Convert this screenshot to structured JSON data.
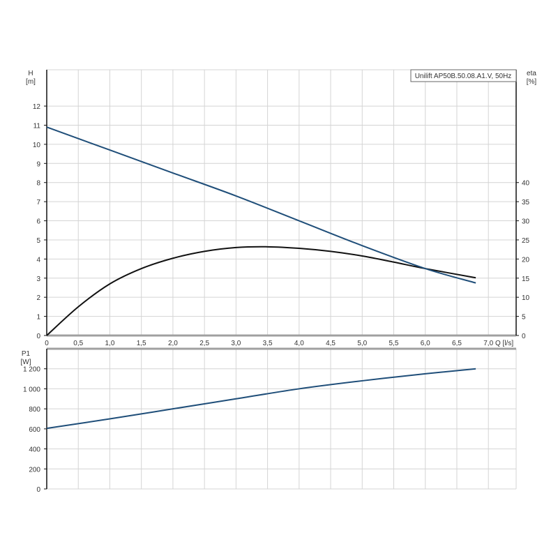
{
  "chart_data": [
    {
      "type": "line",
      "title": "Unilift AP50B.50.08.A1.V, 50Hz",
      "xlabel": "Q [l/s]",
      "ylabel_left": [
        "H",
        "[m]"
      ],
      "ylabel_right": [
        "eta",
        "[%]"
      ],
      "xlim": [
        0,
        7.44
      ],
      "ylim_left": [
        0,
        13.9
      ],
      "ylim_right": [
        0,
        69.5
      ],
      "x_ticks": [
        "0",
        "0,5",
        "1,0",
        "1,5",
        "2,0",
        "2,5",
        "3,0",
        "3,5",
        "4,0",
        "4,5",
        "5,0",
        "5,5",
        "6,0",
        "6,5",
        "7,0"
      ],
      "x_tick_values": [
        0,
        0.5,
        1,
        1.5,
        2,
        2.5,
        3,
        3.5,
        4,
        4.5,
        5,
        5.5,
        6,
        6.5,
        7
      ],
      "y_ticks_left": [
        0,
        1,
        2,
        3,
        4,
        5,
        6,
        7,
        8,
        9,
        10,
        11,
        12
      ],
      "y_ticks_right": [
        0,
        5,
        10,
        15,
        20,
        25,
        30,
        35,
        40
      ],
      "grid": true,
      "series": [
        {
          "name": "H",
          "axis": "left",
          "color": "#1f4e79",
          "x": [
            0,
            1,
            2,
            3,
            4,
            5,
            6,
            6.8
          ],
          "y": [
            10.9,
            9.7,
            8.5,
            7.3,
            6.0,
            4.7,
            3.5,
            2.75
          ]
        },
        {
          "name": "eta",
          "axis": "right",
          "color": "#111111",
          "x": [
            0,
            0.5,
            1,
            1.5,
            2,
            2.5,
            3,
            3.5,
            4,
            4.5,
            5,
            5.5,
            6,
            6.8
          ],
          "y": [
            0,
            7.5,
            13.5,
            17.5,
            20.2,
            22,
            23,
            23.2,
            22.8,
            22,
            20.8,
            19.2,
            17.5,
            15.1
          ]
        }
      ]
    },
    {
      "type": "line",
      "title": "",
      "xlabel": "",
      "ylabel": [
        "P1",
        "[W]"
      ],
      "xlim": [
        0,
        7.44
      ],
      "ylim": [
        0,
        1400
      ],
      "y_ticks": [
        0,
        200,
        400,
        600,
        800,
        1000,
        1200
      ],
      "y_tick_labels": [
        "0",
        "200",
        "400",
        "600",
        "800",
        "1 000",
        "1 200"
      ],
      "grid": true,
      "series": [
        {
          "name": "P1",
          "color": "#1f4e79",
          "x": [
            0,
            1,
            2,
            3,
            4,
            5,
            6,
            6.8
          ],
          "y": [
            605,
            700,
            800,
            900,
            1000,
            1080,
            1150,
            1200
          ]
        }
      ]
    }
  ]
}
